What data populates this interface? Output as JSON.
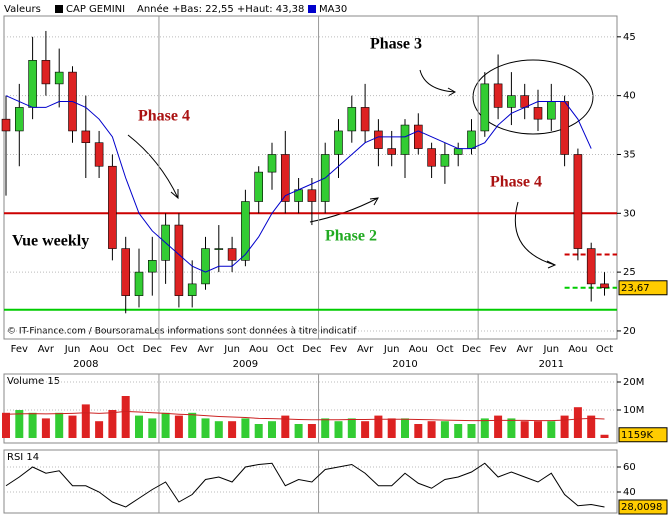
{
  "chart_data": [
    {
      "type": "candlestick",
      "header_label": "Valeurs",
      "title": "CAP GEMINI",
      "subtitle": "Année +Bas: 22,55 +Haut: 43,38",
      "source": "© IT-Finance.com / BoursoramaLes informations sont données à titre indicatif",
      "categories": [
        null,
        "Fev",
        null,
        "Avr",
        null,
        "Jun",
        null,
        "Aou",
        null,
        "Oct",
        null,
        "Dec",
        null,
        "Fev",
        null,
        "Avr",
        null,
        "Jun",
        null,
        "Aou",
        null,
        "Oct",
        null,
        "Dec",
        null,
        "Fev",
        null,
        "Avr",
        null,
        "Jun",
        null,
        "Aou",
        null,
        "Oct",
        null,
        "Dec",
        null,
        "Fev",
        null,
        "Avr",
        null,
        "Jun",
        null,
        "Aou",
        null,
        "Oct"
      ],
      "years": [
        null,
        null,
        null,
        null,
        null,
        null,
        "2008",
        null,
        null,
        null,
        null,
        null,
        null,
        null,
        null,
        null,
        null,
        null,
        "2009",
        null,
        null,
        null,
        null,
        null,
        null,
        null,
        null,
        null,
        null,
        null,
        "2010",
        null,
        null,
        null,
        null,
        null,
        null,
        null,
        null,
        null,
        null,
        "2011",
        null,
        null,
        null,
        null
      ],
      "open": [
        38,
        37,
        39,
        43,
        41,
        42,
        37,
        36,
        34,
        27,
        23,
        25,
        26,
        29,
        23,
        24,
        27,
        27,
        26,
        31,
        33.5,
        35,
        31,
        32,
        31,
        35,
        37,
        39,
        37,
        35.5,
        35,
        37.5,
        35.5,
        34,
        35,
        35.5,
        37,
        41,
        39,
        40,
        39,
        38,
        39.5,
        35,
        27,
        24
      ],
      "high": [
        40,
        41,
        45,
        45.5,
        44,
        42.5,
        40,
        37,
        35,
        28,
        27,
        28,
        30,
        30,
        26,
        28,
        29,
        28,
        32,
        34,
        36,
        37,
        33,
        33,
        36,
        38,
        40,
        41,
        38,
        37,
        38,
        38.5,
        36,
        36,
        36,
        38,
        42,
        43.5,
        42,
        41,
        40.5,
        41,
        40,
        35.5,
        27.5,
        25
      ],
      "low": [
        31.5,
        34,
        38,
        40,
        39,
        36,
        33,
        33,
        26,
        21.5,
        22,
        23,
        24,
        22,
        22,
        23.5,
        25,
        25,
        25.5,
        30,
        32,
        30,
        30,
        29,
        30,
        33,
        36,
        36,
        34,
        34,
        33,
        35,
        33,
        32.5,
        34,
        35,
        36.5,
        38,
        37.5,
        38,
        37,
        37,
        34,
        26,
        22.5,
        23
      ],
      "close": [
        37,
        39,
        43,
        41,
        42,
        37,
        36,
        34,
        27,
        23,
        25,
        26,
        29,
        23,
        24,
        27,
        27,
        26,
        31,
        33.5,
        35,
        31,
        32,
        31,
        35,
        37,
        39,
        37,
        35.5,
        35,
        37.5,
        35.5,
        34,
        35,
        35.5,
        37,
        41,
        39,
        40,
        39,
        38,
        39.5,
        35,
        27,
        24,
        23.67
      ],
      "up_color": "#33cc33",
      "down_color": "#dd2222",
      "series": [
        {
          "name": "MA30",
          "color": "#0000cc",
          "values": [
            40,
            39.5,
            39,
            39,
            39.5,
            39.5,
            39,
            38,
            36.5,
            33,
            30,
            28.5,
            27.5,
            26.5,
            25.5,
            25,
            25.5,
            25.5,
            26.5,
            28,
            30,
            31.5,
            32,
            32.5,
            33,
            34,
            35,
            36,
            36.5,
            36.5,
            36.5,
            37,
            36.5,
            36,
            35.5,
            35.5,
            36,
            37.5,
            38.5,
            39,
            39.5,
            39.5,
            39.5,
            38,
            35.5,
            null
          ]
        }
      ],
      "levels": [
        {
          "value": 30,
          "color": "#cc0000",
          "style": "solid"
        },
        {
          "value": 21.8,
          "color": "#00cc00",
          "style": "solid"
        },
        {
          "value": 26.5,
          "color": "#cc0000",
          "style": "dashed"
        },
        {
          "value": 23.67,
          "color": "#00cc00",
          "style": "dashed"
        }
      ],
      "last_price": {
        "value": 23.67,
        "label": "23,67"
      },
      "annotations": [
        {
          "text": "Phase 4",
          "color": "#aa1111"
        },
        {
          "text": "Phase 3",
          "color": "#000000"
        },
        {
          "text": "Phase 2",
          "color": "#22aa22"
        },
        {
          "text": "Phase 4",
          "color": "#aa1111"
        },
        {
          "text": "Vue weekly",
          "color": "#000000"
        }
      ],
      "ylim": [
        19.4,
        46.6
      ],
      "yticks": [
        20,
        25,
        30,
        35,
        40,
        45
      ],
      "grid": true
    },
    {
      "type": "bar",
      "title": "Volume 15",
      "values": [
        9000000,
        10000000,
        9000000,
        7000000,
        9000000,
        8000000,
        12000000,
        6000000,
        10000000,
        15000000,
        8000000,
        7000000,
        9000000,
        8000000,
        9000000,
        7000000,
        6000000,
        6000000,
        7000000,
        5000000,
        6000000,
        8000000,
        5000000,
        5000000,
        7000000,
        6000000,
        7000000,
        6000000,
        8000000,
        7000000,
        7000000,
        5000000,
        6000000,
        6000000,
        5000000,
        5000000,
        7000000,
        8000000,
        7000000,
        6000000,
        6000000,
        6000000,
        8000000,
        11000000,
        8000000,
        1159000
      ],
      "ma_color": "#cc2222",
      "ma_values": [
        8500000,
        8600000,
        8700000,
        8600000,
        8700000,
        8800000,
        9000000,
        8800000,
        9000000,
        9500000,
        9300000,
        9000000,
        8800000,
        8500000,
        8300000,
        8000000,
        7700000,
        7500000,
        7300000,
        7000000,
        6900000,
        6800000,
        6600000,
        6500000,
        6500000,
        6500000,
        6600000,
        6600000,
        6700000,
        6700000,
        6700000,
        6600000,
        6500000,
        6400000,
        6300000,
        6200000,
        6200000,
        6300000,
        6300000,
        6300000,
        6200000,
        6200000,
        6400000,
        6800000,
        7000000,
        6800000
      ],
      "last_value": {
        "value": 1159000,
        "label": "1159K"
      },
      "ylim": [
        0,
        22500000
      ],
      "yticks": [
        {
          "value": 10000000,
          "label": "10M"
        },
        {
          "value": 20000000,
          "label": "20M"
        }
      ]
    },
    {
      "type": "line",
      "title": "RSI 14",
      "color": "#000000",
      "values": [
        45,
        52,
        60,
        55,
        57,
        45,
        45,
        40,
        32,
        28,
        35,
        42,
        48,
        32,
        38,
        50,
        52,
        48,
        60,
        62,
        63,
        45,
        50,
        48,
        58,
        60,
        62,
        55,
        45,
        45,
        55,
        47,
        43,
        50,
        52,
        56,
        63,
        52,
        56,
        52,
        48,
        55,
        38,
        29,
        30,
        28.0098
      ],
      "last_value": {
        "value": 28.0098,
        "label": "28,0098"
      },
      "ylim": [
        24,
        67.2
      ],
      "yticks": [
        40,
        60
      ]
    }
  ]
}
